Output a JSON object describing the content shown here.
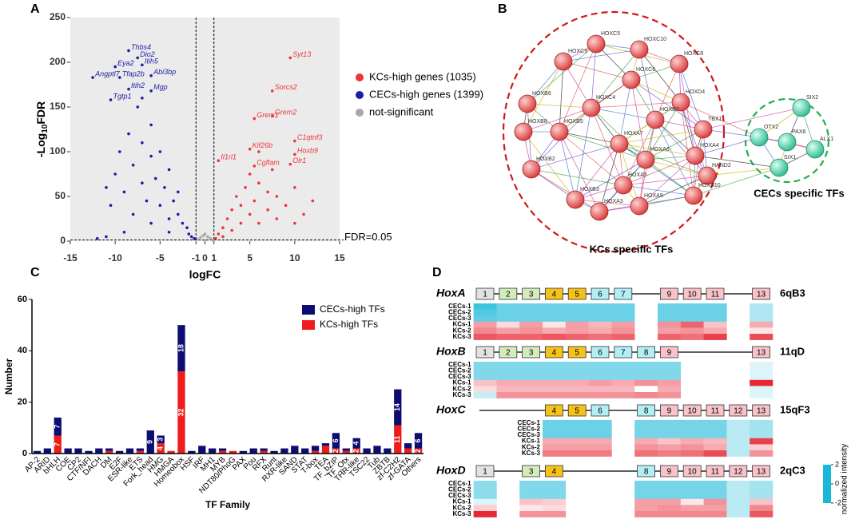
{
  "chart_data": [
    {
      "type": "scatter",
      "panel": "A",
      "xlabel": "logFC",
      "ylabel": [
        "-Log",
        "10",
        "FDR"
      ],
      "xlim": [
        -15,
        15
      ],
      "xticks": [
        -15,
        -10,
        -5,
        -1,
        0,
        1,
        5,
        10,
        15
      ],
      "ylim": [
        0,
        250
      ],
      "yticks": [
        0,
        50,
        100,
        150,
        200,
        250
      ],
      "vlines": [
        -1,
        1
      ],
      "hline": 1.3,
      "threshold_label": "FDR=0.05",
      "series": [
        {
          "name": "KCs-high genes (1035)",
          "color": "#f0343c",
          "x": [
            1.2,
            1.5,
            2,
            2.5,
            3,
            3,
            3.5,
            4,
            4,
            4.5,
            5,
            5,
            5.5,
            6,
            6,
            7,
            7,
            7.5,
            8,
            8,
            9,
            10,
            11,
            12,
            2,
            6,
            10
          ],
          "values": [
            3,
            8,
            15,
            25,
            35,
            12,
            50,
            40,
            20,
            60,
            30,
            75,
            45,
            65,
            20,
            55,
            35,
            80,
            25,
            50,
            40,
            60,
            30,
            45,
            5,
            100,
            20
          ]
        },
        {
          "name": "CECs-high genes (1399)",
          "color": "#1c1ca8",
          "x": [
            -12,
            -11,
            -10.5,
            -10,
            -9.5,
            -9,
            -8.5,
            -8,
            -8,
            -7.5,
            -7,
            -7,
            -6.5,
            -6,
            -6,
            -5.5,
            -5,
            -5,
            -4.5,
            -4,
            -4,
            -3.5,
            -3,
            -3,
            -2.5,
            -2,
            -1.8,
            -1.5,
            -1.2,
            -6,
            -9,
            -7,
            -11,
            -4
          ],
          "values": [
            3,
            60,
            40,
            75,
            100,
            55,
            120,
            85,
            30,
            150,
            65,
            110,
            45,
            95,
            130,
            70,
            40,
            100,
            60,
            80,
            25,
            45,
            30,
            55,
            20,
            15,
            8,
            5,
            3,
            20,
            10,
            160,
            5,
            10
          ]
        },
        {
          "name": "not-significant",
          "color": "#a8a8a8",
          "x": [
            -0.8,
            -0.5,
            -0.2,
            0,
            0.3,
            0.6,
            0.9,
            0
          ],
          "values": [
            2,
            4,
            6,
            8,
            5,
            3,
            1,
            1
          ]
        }
      ],
      "annotations": [
        {
          "text": "Thbs4",
          "x": -8.5,
          "y": 213,
          "color": "#1c1ca8"
        },
        {
          "text": "Dio2",
          "x": -7.5,
          "y": 205,
          "color": "#1c1ca8"
        },
        {
          "text": "Eya2",
          "x": -10,
          "y": 195,
          "color": "#1c1ca8"
        },
        {
          "text": "Itih5",
          "x": -7,
          "y": 197,
          "color": "#1c1ca8"
        },
        {
          "text": "Tfap2b",
          "x": -9.5,
          "y": 183,
          "color": "#1c1ca8"
        },
        {
          "text": "Abi3bp",
          "x": -6,
          "y": 185,
          "color": "#1c1ca8"
        },
        {
          "text": "Angptl7",
          "x": -12.5,
          "y": 183,
          "color": "#1c1ca8"
        },
        {
          "text": "Itih2",
          "x": -8.5,
          "y": 170,
          "color": "#1c1ca8"
        },
        {
          "text": "Mgp",
          "x": -6,
          "y": 168,
          "color": "#1c1ca8"
        },
        {
          "text": "Tgtp1",
          "x": -10.5,
          "y": 158,
          "color": "#1c1ca8"
        },
        {
          "text": "Syt13",
          "x": 9.5,
          "y": 205,
          "color": "#f0343c"
        },
        {
          "text": "Sorcs2",
          "x": 7.5,
          "y": 168,
          "color": "#f0343c"
        },
        {
          "text": "Grem1",
          "x": 5.5,
          "y": 137,
          "color": "#f0343c"
        },
        {
          "text": "Grem2",
          "x": 7.5,
          "y": 140,
          "color": "#f0343c"
        },
        {
          "text": "C1qtnf3",
          "x": 10,
          "y": 112,
          "color": "#f0343c"
        },
        {
          "text": "Kif26b",
          "x": 5,
          "y": 103,
          "color": "#f0343c"
        },
        {
          "text": "Hoxb9",
          "x": 10,
          "y": 97,
          "color": "#f0343c"
        },
        {
          "text": "Il1rl1",
          "x": 1.5,
          "y": 90,
          "color": "#f0343c"
        },
        {
          "text": "Cgflam",
          "x": 5.5,
          "y": 84,
          "color": "#f0343c"
        },
        {
          "text": "Olr1",
          "x": 9.5,
          "y": 86,
          "color": "#f0343c"
        }
      ]
    },
    {
      "type": "bar",
      "panel": "C",
      "stacked": true,
      "xlabel": "TF Family",
      "ylabel": "Number",
      "ylim": [
        0,
        60
      ],
      "yticks": [
        0,
        20,
        40,
        60
      ],
      "categories": [
        "AP-2",
        "ARID",
        "bHLH",
        "COE",
        "CP2",
        "CTF/NFI",
        "DACH",
        "DM",
        "E2F",
        "ESR-like",
        "ETS",
        "Fork_head",
        "HMG",
        "HMGA",
        "Homeobox",
        "HSF",
        "IRF",
        "MH1",
        "MYB",
        "NDT80/PhoG",
        "PAX",
        "Pou",
        "RFX",
        "Runt",
        "RXR-like",
        "SAND",
        "STAT",
        "T-box",
        "TEA",
        "TF_bZIP",
        "TF_Otx",
        "THR-like",
        "TSC22",
        "Tub",
        "ZBTB",
        "zf-C2H2",
        "zf-GATA",
        "Others"
      ],
      "series": [
        {
          "name": "KCs-high TFs",
          "color": "#ee1c1c",
          "values": [
            0,
            0,
            7,
            0,
            0,
            0,
            0,
            1,
            0,
            0,
            1,
            0,
            4,
            1,
            32,
            0,
            0,
            0,
            1,
            1,
            0,
            0,
            1,
            0,
            0,
            0,
            0,
            1,
            3,
            2,
            1,
            2,
            0,
            0,
            0,
            11,
            2,
            2
          ],
          "value_labels": [
            null,
            null,
            "7",
            null,
            null,
            null,
            null,
            null,
            null,
            null,
            null,
            null,
            "4",
            null,
            "32",
            null,
            null,
            null,
            null,
            null,
            null,
            null,
            null,
            null,
            null,
            null,
            null,
            null,
            null,
            "2",
            null,
            "2",
            null,
            null,
            null,
            "11",
            null,
            "2"
          ]
        },
        {
          "name": "CECs-high TFs",
          "color": "#0c0c72",
          "values": [
            1,
            2,
            7,
            2,
            2,
            1,
            2,
            1,
            1,
            2,
            1,
            9,
            3,
            0,
            18,
            1,
            3,
            2,
            1,
            0,
            1,
            2,
            1,
            1,
            2,
            3,
            2,
            2,
            1,
            6,
            1,
            4,
            2,
            3,
            2,
            14,
            2,
            6
          ],
          "value_labels": [
            null,
            null,
            "7",
            null,
            null,
            null,
            null,
            null,
            null,
            null,
            null,
            "9",
            "3",
            null,
            "18",
            null,
            null,
            null,
            null,
            null,
            null,
            null,
            null,
            null,
            null,
            null,
            null,
            null,
            null,
            "6",
            null,
            "4",
            null,
            null,
            null,
            "14",
            null,
            "6"
          ]
        }
      ]
    },
    {
      "type": "heatmap",
      "panel": "D",
      "rows": [
        "CECs-1",
        "CECs-2",
        "CECs-3",
        "KCs-1",
        "KCs-2",
        "KCs-3"
      ],
      "zlim": [
        -2,
        2
      ],
      "zticks": [
        2,
        0,
        -2
      ],
      "colorbar_label": "normalized intensity",
      "colors": [
        "#1ab8d8",
        "#ffffff",
        "#e3101e"
      ],
      "paralog_colors": [
        "#e2e2e2",
        "#d2ecbc",
        "#d2ecbc",
        "#f5c21b",
        "#f5c21b",
        "#b2eef4",
        "#b2eef4",
        "#b2eef4",
        "#f7c3c9",
        "#f7c3c9",
        "#f7c3c9",
        "#f7c3c9",
        "#f7c3c9"
      ],
      "clusters": [
        {
          "name": "HoxA",
          "locus": "6qB3",
          "genes": [
            1,
            2,
            3,
            4,
            5,
            6,
            7,
            9,
            10,
            11,
            13
          ],
          "values": [
            [
              -1.7,
              -1.3,
              -1.3,
              -1.3,
              -1.3,
              -1.3,
              -1.3,
              -1.3,
              -1.3,
              -1.3,
              -0.7
            ],
            [
              -1.5,
              -1.3,
              -1.3,
              -1.3,
              -1.3,
              -1.3,
              -1.3,
              -1.3,
              -1.3,
              -1.3,
              -0.7
            ],
            [
              -1.4,
              -1.3,
              -1.3,
              -1.3,
              -1.3,
              -1.3,
              -1.3,
              -1.3,
              -1.3,
              -1.3,
              -0.7
            ],
            [
              0.8,
              0.3,
              0.8,
              0.2,
              0.8,
              0.6,
              0.8,
              0.9,
              1.3,
              0.5,
              0.7
            ],
            [
              1.0,
              0.8,
              0.9,
              0.7,
              0.8,
              0.7,
              0.9,
              0.8,
              0.9,
              0.7,
              0.2
            ],
            [
              1.4,
              1.3,
              1.3,
              1.4,
              1.3,
              1.2,
              1.3,
              1.3,
              1.2,
              1.6,
              1.5
            ]
          ]
        },
        {
          "name": "HoxB",
          "locus": "11qD",
          "genes": [
            1,
            2,
            3,
            4,
            5,
            6,
            7,
            8,
            9,
            13
          ],
          "values": [
            [
              -1.1,
              -1.1,
              -1.1,
              -1.1,
              -1.1,
              -1.1,
              -1.1,
              -1.1,
              -1.1,
              -0.3
            ],
            [
              -1.1,
              -1.1,
              -1.1,
              -1.1,
              -1.1,
              -1.1,
              -1.1,
              -1.1,
              -1.1,
              -0.3
            ],
            [
              -1.1,
              -1.1,
              -1.1,
              -1.1,
              -1.1,
              -1.1,
              -1.1,
              -1.1,
              -1.1,
              -0.3
            ],
            [
              0.5,
              0.7,
              0.7,
              0.7,
              0.7,
              0.8,
              0.7,
              0.9,
              0.8,
              1.8
            ],
            [
              0.3,
              0.6,
              0.6,
              0.6,
              0.6,
              0.6,
              0.6,
              0.0,
              0.7,
              -0.3
            ],
            [
              -0.5,
              0.9,
              0.9,
              0.9,
              0.9,
              0.9,
              0.9,
              1.0,
              0.9,
              -0.3
            ]
          ]
        },
        {
          "name": "HoxC",
          "locus": "15qF3",
          "genes": [
            4,
            5,
            6,
            8,
            9,
            10,
            11,
            12,
            13
          ],
          "values": [
            [
              -1.3,
              -1.3,
              -1.3,
              -1.2,
              -1.2,
              -1.2,
              -1.2,
              -0.6,
              -0.8
            ],
            [
              -1.3,
              -1.3,
              -1.3,
              -1.2,
              -1.2,
              -1.2,
              -1.2,
              -0.6,
              -0.8
            ],
            [
              -1.3,
              -1.3,
              -1.3,
              -1.2,
              -1.2,
              -1.2,
              -1.2,
              -0.6,
              -0.8
            ],
            [
              0.7,
              0.7,
              0.7,
              0.7,
              0.5,
              0.7,
              0.6,
              -0.6,
              1.6
            ],
            [
              0.8,
              0.8,
              0.8,
              0.9,
              0.8,
              0.9,
              0.7,
              -0.6,
              0.4
            ],
            [
              1.1,
              1.1,
              1.1,
              1.2,
              1.1,
              1.2,
              1.5,
              -0.6,
              0.9
            ]
          ]
        },
        {
          "name": "HoxD",
          "locus": "2qC3",
          "genes": [
            1,
            3,
            4,
            8,
            9,
            10,
            11,
            12,
            13
          ],
          "values": [
            [
              -1.0,
              -1.1,
              -1.1,
              -1.2,
              -1.2,
              -1.2,
              -1.2,
              -0.6,
              -0.8
            ],
            [
              -1.0,
              -1.1,
              -1.1,
              -1.2,
              -1.2,
              -1.2,
              -1.2,
              -0.6,
              -0.8
            ],
            [
              -1.0,
              -1.1,
              -1.1,
              -1.2,
              -1.2,
              -1.2,
              -1.2,
              -0.6,
              -0.8
            ],
            [
              -0.3,
              0.5,
              0.4,
              0.8,
              0.8,
              0.2,
              0.9,
              -0.6,
              0.5
            ],
            [
              0.4,
              0.2,
              0.3,
              0.8,
              0.9,
              0.8,
              0.8,
              -0.6,
              1.0
            ],
            [
              1.8,
              0.9,
              0.9,
              1.0,
              1.0,
              1.0,
              1.0,
              -0.6,
              1.4
            ]
          ]
        }
      ]
    }
  ],
  "network": {
    "panel": "B",
    "groups": [
      {
        "label": "KCs specific TFs",
        "color": "#e8505a",
        "border": "#d01818",
        "nodes": [
          "HOXC5",
          "HOXC10",
          "HOXC9",
          "HOXC8",
          "HOXC6",
          "HOXB6",
          "HOXD4",
          "HOXC4",
          "HOXB7",
          "TBX1",
          "HOXB8",
          "HOXB5",
          "HOXA7",
          "HOXA4",
          "HOXA6",
          "HAND2",
          "HOXB2",
          "HOXA5",
          "HOXA10",
          "HOXB3",
          "HOXA9",
          "HOXA3"
        ]
      },
      {
        "label": "CECs specific TFs",
        "color": "#4fd3a8",
        "border": "#20b04a",
        "nodes": [
          "SIX2",
          "OTX2",
          "PAX6",
          "ALX1",
          "SIX1"
        ]
      }
    ]
  }
}
